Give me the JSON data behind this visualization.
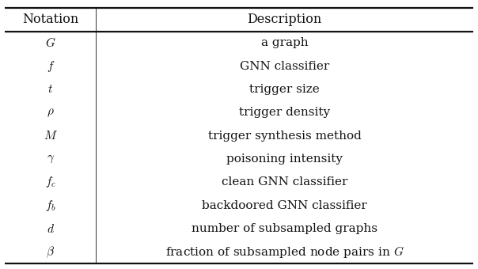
{
  "title_notation": "Notation",
  "title_description": "Description",
  "rows": [
    [
      "$G$",
      "a graph"
    ],
    [
      "$f$",
      "GNN classifier"
    ],
    [
      "$t$",
      "trigger size"
    ],
    [
      "$\\rho$",
      "trigger density"
    ],
    [
      "$M$",
      "trigger synthesis method"
    ],
    [
      "$\\gamma$",
      "poisoning intensity"
    ],
    [
      "$f_c$",
      "clean GNN classifier"
    ],
    [
      "$f_b$",
      "backdoored GNN classifier"
    ],
    [
      "$d$",
      "number of subsampled graphs"
    ],
    [
      "$\\beta$",
      "fraction of subsampled node pairs in $G$"
    ]
  ],
  "col_split": 0.195,
  "bg_color": "#ffffff",
  "border_color": "#111111",
  "text_color": "#111111",
  "font_size": 11.0,
  "header_font_size": 11.5,
  "thick_lw": 1.6,
  "thin_lw": 0.6
}
